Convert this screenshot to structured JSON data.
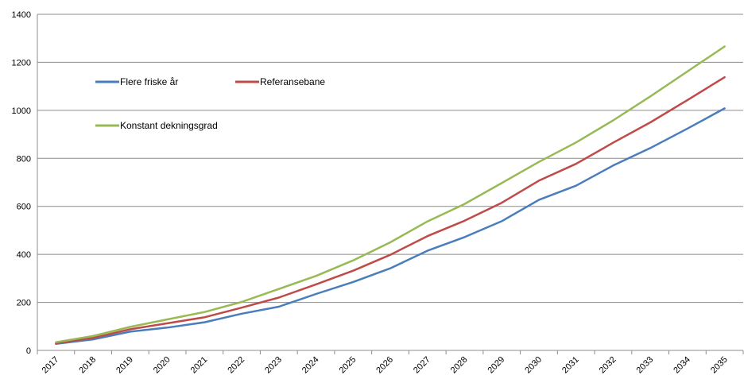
{
  "chart_data": {
    "type": "line",
    "title": "",
    "xlabel": "",
    "ylabel": "",
    "x": [
      "2017",
      "2018",
      "2019",
      "2020",
      "2021",
      "2022",
      "2023",
      "2024",
      "2025",
      "2026",
      "2027",
      "2028",
      "2029",
      "2030",
      "2031",
      "2032",
      "2033",
      "2034",
      "2035"
    ],
    "ylim": [
      0,
      1400
    ],
    "yticks": [
      0,
      200,
      400,
      600,
      800,
      1000,
      1200,
      1400
    ],
    "grid": true,
    "legend_position": "upper-left, inside plot",
    "series": [
      {
        "name": "Flere friske år",
        "color": "#4a7ebb",
        "values": [
          27,
          46,
          78,
          95,
          117,
          153,
          182,
          235,
          285,
          342,
          415,
          472,
          538,
          627,
          686,
          770,
          843,
          924,
          1008
        ]
      },
      {
        "name": "Referansebane",
        "color": "#be4b48",
        "values": [
          30,
          52,
          88,
          113,
          138,
          178,
          220,
          275,
          332,
          398,
          476,
          540,
          615,
          707,
          777,
          865,
          950,
          1043,
          1138
        ]
      },
      {
        "name": "Konstant dekningsgrad",
        "color": "#98b954",
        "values": [
          34,
          60,
          98,
          129,
          160,
          202,
          256,
          310,
          375,
          450,
          537,
          610,
          697,
          785,
          866,
          958,
          1058,
          1162,
          1266
        ]
      }
    ]
  }
}
